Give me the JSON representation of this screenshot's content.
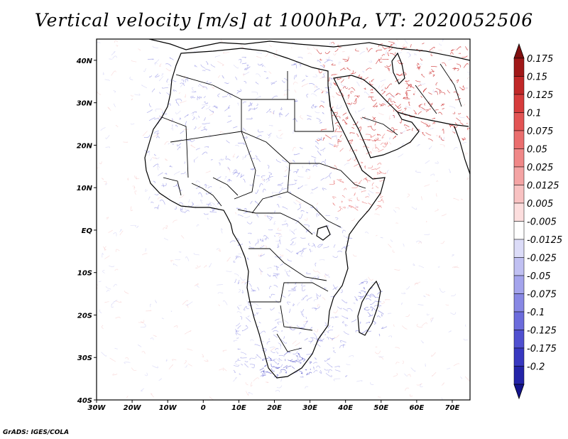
{
  "title": "Vertical velocity [m/s] at 1000hPa, VT: 2020052506",
  "credit": "GrADS: IGES/COLA",
  "map": {
    "projection": "latlon",
    "lon_range": [
      -30,
      75
    ],
    "lat_range": [
      -40,
      45
    ],
    "x_ticks": [
      {
        "lon": -30,
        "label": "30W"
      },
      {
        "lon": -20,
        "label": "20W"
      },
      {
        "lon": -10,
        "label": "10W"
      },
      {
        "lon": 0,
        "label": "0"
      },
      {
        "lon": 10,
        "label": "10E"
      },
      {
        "lon": 20,
        "label": "20E"
      },
      {
        "lon": 30,
        "label": "30E"
      },
      {
        "lon": 40,
        "label": "40E"
      },
      {
        "lon": 50,
        "label": "50E"
      },
      {
        "lon": 60,
        "label": "60E"
      },
      {
        "lon": 70,
        "label": "70E"
      }
    ],
    "y_ticks": [
      {
        "lat": 40,
        "label": "40N"
      },
      {
        "lat": 30,
        "label": "30N"
      },
      {
        "lat": 20,
        "label": "20N"
      },
      {
        "lat": 10,
        "label": "10N"
      },
      {
        "lat": 0,
        "label": "EQ"
      },
      {
        "lat": -10,
        "label": "10S"
      },
      {
        "lat": -20,
        "label": "20S"
      },
      {
        "lat": -30,
        "label": "30S"
      },
      {
        "lat": -40,
        "label": "40S"
      }
    ],
    "upward_regions": [
      "Middle East / Arabian Peninsula",
      "Iran",
      "Red Sea coast",
      "Horn of Africa"
    ],
    "downward_regions": [
      "Morocco / Atlas",
      "Sahel",
      "East African highlands",
      "Southern Africa",
      "Madagascar"
    ]
  },
  "colorbar": {
    "levels": [
      {
        "label": "0.175",
        "color": "#a01818"
      },
      {
        "label": "0.15",
        "color": "#c02828"
      },
      {
        "label": "0.125",
        "color": "#d63c3c"
      },
      {
        "label": "0.1",
        "color": "#e25454"
      },
      {
        "label": "0.075",
        "color": "#ea6e6e"
      },
      {
        "label": "0.05",
        "color": "#f08888"
      },
      {
        "label": "0.025",
        "color": "#f4a4a4"
      },
      {
        "label": "0.0125",
        "color": "#f8c2c2"
      },
      {
        "label": "0.005",
        "color": "#fcdede"
      },
      {
        "label": "-0.005",
        "color": "#ffffff"
      },
      {
        "label": "-0.0125",
        "color": "#dcdcf8"
      },
      {
        "label": "-0.025",
        "color": "#c0c0f2"
      },
      {
        "label": "-0.05",
        "color": "#a4a4ec"
      },
      {
        "label": "-0.075",
        "color": "#8888e4"
      },
      {
        "label": "-0.1",
        "color": "#6c6cdc"
      },
      {
        "label": "-0.125",
        "color": "#5050d0"
      },
      {
        "label": "-0.175",
        "color": "#3838c0"
      },
      {
        "label": "-0.2",
        "color": "#2424a8"
      }
    ],
    "top_arrow_color": "#801010",
    "bottom_arrow_color": "#14148c",
    "mid_color": "#ffffff"
  }
}
